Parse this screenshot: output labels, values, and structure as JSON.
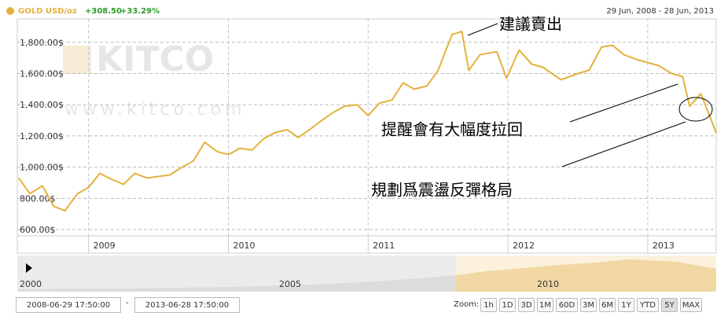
{
  "chart_data": {
    "type": "line",
    "subtitle": "29 Jun, 2008 - 28 Jun, 2013",
    "change": "+308.50",
    "change_percent": "+33.29%",
    "x": [
      2008.5,
      2008.58,
      2008.67,
      2008.75,
      2008.83,
      2008.92,
      2009.0,
      2009.08,
      2009.17,
      2009.25,
      2009.33,
      2009.42,
      2009.5,
      2009.58,
      2009.67,
      2009.75,
      2009.83,
      2009.92,
      2010.0,
      2010.08,
      2010.17,
      2010.25,
      2010.33,
      2010.42,
      2010.5,
      2010.58,
      2010.67,
      2010.75,
      2010.83,
      2010.92,
      2011.0,
      2011.08,
      2011.17,
      2011.25,
      2011.33,
      2011.42,
      2011.5,
      2011.6,
      2011.67,
      2011.72,
      2011.8,
      2011.92,
      2011.99,
      2012.08,
      2012.17,
      2012.25,
      2012.38,
      2012.5,
      2012.58,
      2012.67,
      2012.75,
      2012.83,
      2012.92,
      2013.0,
      2013.08,
      2013.17,
      2013.25,
      2013.3,
      2013.38,
      2013.42,
      2013.49
    ],
    "series": [
      {
        "name": "GOLD USD/oz",
        "color": "#e3b23c",
        "values": [
          930,
          830,
          880,
          750,
          720,
          830,
          870,
          960,
          920,
          890,
          960,
          930,
          940,
          950,
          1000,
          1040,
          1160,
          1100,
          1080,
          1120,
          1110,
          1180,
          1220,
          1240,
          1190,
          1240,
          1300,
          1350,
          1390,
          1400,
          1330,
          1410,
          1430,
          1540,
          1500,
          1520,
          1620,
          1850,
          1870,
          1620,
          1720,
          1740,
          1570,
          1750,
          1660,
          1640,
          1560,
          1600,
          1620,
          1770,
          1780,
          1720,
          1690,
          1670,
          1650,
          1600,
          1580,
          1390,
          1470,
          1380,
          1220
        ]
      }
    ],
    "xlim": [
      2008.49,
      2013.49
    ],
    "xticks": [
      2009,
      2010,
      2011,
      2012,
      2013
    ],
    "ylim": [
      560,
      1950
    ],
    "yticks": [
      {
        "value": 600,
        "label": "600.00$"
      },
      {
        "value": 800,
        "label": "800.00$"
      },
      {
        "value": 1000,
        "label": "1,000.00$"
      },
      {
        "value": 1200,
        "label": "1,200.00$"
      },
      {
        "value": 1400,
        "label": "1,400.00$"
      },
      {
        "value": 1600,
        "label": "1,600.00$"
      },
      {
        "value": 1800,
        "label": "1,800.00$"
      }
    ],
    "grid": true,
    "annotations": [
      "建議賣出",
      "提醒會有大幅度拉回",
      "規劃爲震盪反彈格局"
    ]
  },
  "watermark": {
    "brand": "KITCO",
    "url": "www.kitco.com"
  },
  "navigator": {
    "labels": [
      "2000",
      "2005",
      "2010"
    ]
  },
  "controls": {
    "from": "2008-06-29 17:50:00",
    "separator": "-",
    "to": "2013-06-28 17:50:00",
    "zoom_label": "Zoom:",
    "zoom": [
      "1h",
      "1D",
      "3D",
      "1M",
      "60D",
      "3M",
      "6M",
      "1Y",
      "YTD",
      "5Y",
      "MAX"
    ],
    "active_zoom": "5Y"
  }
}
